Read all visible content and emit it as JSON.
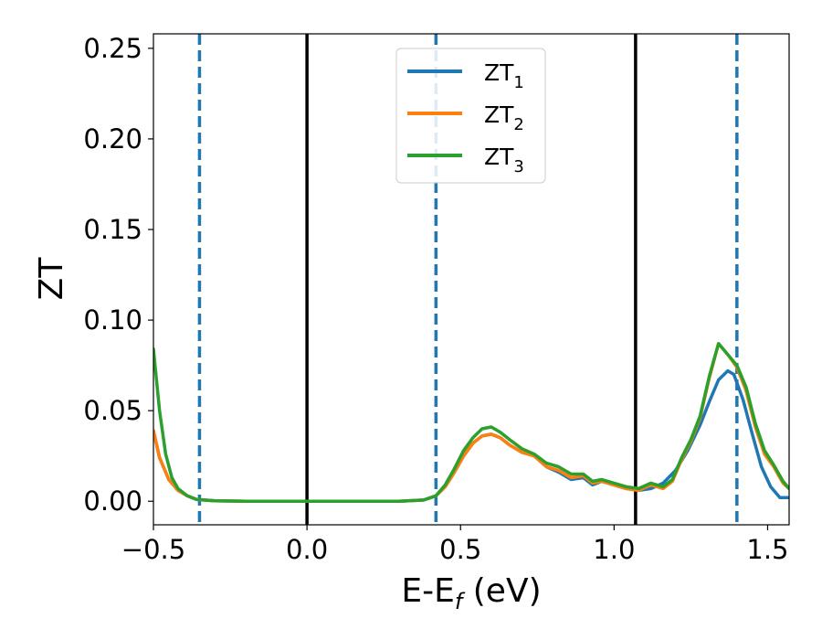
{
  "chart_data": {
    "type": "line",
    "xlabel": "E-E",
    "xlabel_sub": "f",
    "xlabel_unit": " (eV)",
    "ylabel": "ZT",
    "xlim": [
      -0.5,
      1.57
    ],
    "ylim": [
      -0.013,
      0.258
    ],
    "xticks": [
      -0.5,
      0.0,
      0.5,
      1.0,
      1.5
    ],
    "xtick_labels": [
      "−0.5",
      "0.0",
      "0.5",
      "1.0",
      "1.5"
    ],
    "yticks": [
      0.0,
      0.05,
      0.1,
      0.15,
      0.2,
      0.25
    ],
    "ytick_labels": [
      "0.00",
      "0.05",
      "0.10",
      "0.15",
      "0.20",
      "0.25"
    ],
    "grid": false,
    "legend_position": "top-center",
    "vertical_lines": [
      {
        "x": -0.35,
        "style": "dashed",
        "color": "#1f77b4"
      },
      {
        "x": 0.0,
        "style": "solid",
        "color": "#000000"
      },
      {
        "x": 0.42,
        "style": "dashed",
        "color": "#1f77b4"
      },
      {
        "x": 1.07,
        "style": "solid",
        "color": "#000000"
      },
      {
        "x": 1.4,
        "style": "dashed",
        "color": "#1f77b4"
      }
    ],
    "series": [
      {
        "name": "ZT",
        "sub": "1",
        "color": "#1f77b4",
        "points": [
          [
            -0.5,
            0.039
          ],
          [
            -0.48,
            0.024
          ],
          [
            -0.45,
            0.012
          ],
          [
            -0.42,
            0.006
          ],
          [
            -0.39,
            0.003
          ],
          [
            -0.36,
            0.001
          ],
          [
            -0.3,
            0.0002
          ],
          [
            -0.2,
            0
          ],
          [
            0.0,
            0
          ],
          [
            0.3,
            0
          ],
          [
            0.38,
            0.0007
          ],
          [
            0.42,
            0.003
          ],
          [
            0.45,
            0.008
          ],
          [
            0.48,
            0.016
          ],
          [
            0.51,
            0.025
          ],
          [
            0.54,
            0.032
          ],
          [
            0.57,
            0.036
          ],
          [
            0.6,
            0.037
          ],
          [
            0.63,
            0.035
          ],
          [
            0.66,
            0.031
          ],
          [
            0.7,
            0.027
          ],
          [
            0.74,
            0.025
          ],
          [
            0.78,
            0.019
          ],
          [
            0.82,
            0.016
          ],
          [
            0.86,
            0.012
          ],
          [
            0.9,
            0.013
          ],
          [
            0.93,
            0.009
          ],
          [
            0.96,
            0.011
          ],
          [
            1.0,
            0.009
          ],
          [
            1.04,
            0.007
          ],
          [
            1.08,
            0.006
          ],
          [
            1.12,
            0.007
          ],
          [
            1.16,
            0.01
          ],
          [
            1.2,
            0.017
          ],
          [
            1.24,
            0.028
          ],
          [
            1.28,
            0.042
          ],
          [
            1.31,
            0.055
          ],
          [
            1.34,
            0.067
          ],
          [
            1.37,
            0.072
          ],
          [
            1.39,
            0.07
          ],
          [
            1.42,
            0.056
          ],
          [
            1.45,
            0.037
          ],
          [
            1.48,
            0.019
          ],
          [
            1.51,
            0.008
          ],
          [
            1.54,
            0.002
          ],
          [
            1.57,
            0.002
          ]
        ]
      },
      {
        "name": "ZT",
        "sub": "2",
        "color": "#ff7f0e",
        "points": [
          [
            -0.5,
            0.039
          ],
          [
            -0.48,
            0.024
          ],
          [
            -0.45,
            0.012
          ],
          [
            -0.42,
            0.006
          ],
          [
            -0.39,
            0.003
          ],
          [
            -0.36,
            0.001
          ],
          [
            -0.3,
            0.0002
          ],
          [
            -0.2,
            0
          ],
          [
            0.0,
            0
          ],
          [
            0.3,
            0
          ],
          [
            0.38,
            0.0007
          ],
          [
            0.42,
            0.003
          ],
          [
            0.45,
            0.008
          ],
          [
            0.48,
            0.016
          ],
          [
            0.51,
            0.025
          ],
          [
            0.54,
            0.032
          ],
          [
            0.57,
            0.036
          ],
          [
            0.6,
            0.037
          ],
          [
            0.63,
            0.035
          ],
          [
            0.66,
            0.031
          ],
          [
            0.7,
            0.027
          ],
          [
            0.74,
            0.025
          ],
          [
            0.78,
            0.019
          ],
          [
            0.82,
            0.017
          ],
          [
            0.86,
            0.013
          ],
          [
            0.9,
            0.014
          ],
          [
            0.93,
            0.01
          ],
          [
            0.96,
            0.011
          ],
          [
            1.0,
            0.009
          ],
          [
            1.04,
            0.007
          ],
          [
            1.08,
            0.006
          ],
          [
            1.12,
            0.009
          ],
          [
            1.16,
            0.007
          ],
          [
            1.19,
            0.011
          ],
          [
            1.22,
            0.023
          ],
          [
            1.25,
            0.033
          ],
          [
            1.28,
            0.046
          ],
          [
            1.31,
            0.068
          ],
          [
            1.34,
            0.087
          ],
          [
            1.37,
            0.081
          ],
          [
            1.4,
            0.074
          ],
          [
            1.43,
            0.061
          ],
          [
            1.46,
            0.041
          ],
          [
            1.49,
            0.026
          ],
          [
            1.52,
            0.019
          ],
          [
            1.55,
            0.01
          ],
          [
            1.57,
            0.007
          ]
        ]
      },
      {
        "name": "ZT",
        "sub": "3",
        "color": "#2ca02c",
        "points": [
          [
            -0.5,
            0.084
          ],
          [
            -0.48,
            0.05
          ],
          [
            -0.46,
            0.026
          ],
          [
            -0.44,
            0.013
          ],
          [
            -0.42,
            0.007
          ],
          [
            -0.39,
            0.003
          ],
          [
            -0.36,
            0.001
          ],
          [
            -0.3,
            0.0002
          ],
          [
            -0.2,
            0
          ],
          [
            0.0,
            0
          ],
          [
            0.3,
            0
          ],
          [
            0.38,
            0.0007
          ],
          [
            0.42,
            0.003
          ],
          [
            0.45,
            0.009
          ],
          [
            0.48,
            0.018
          ],
          [
            0.51,
            0.028
          ],
          [
            0.54,
            0.035
          ],
          [
            0.57,
            0.04
          ],
          [
            0.6,
            0.041
          ],
          [
            0.63,
            0.038
          ],
          [
            0.66,
            0.034
          ],
          [
            0.7,
            0.029
          ],
          [
            0.74,
            0.026
          ],
          [
            0.78,
            0.021
          ],
          [
            0.82,
            0.019
          ],
          [
            0.86,
            0.015
          ],
          [
            0.9,
            0.015
          ],
          [
            0.93,
            0.011
          ],
          [
            0.96,
            0.012
          ],
          [
            1.0,
            0.01
          ],
          [
            1.04,
            0.008
          ],
          [
            1.08,
            0.007
          ],
          [
            1.12,
            0.01
          ],
          [
            1.16,
            0.008
          ],
          [
            1.19,
            0.012
          ],
          [
            1.22,
            0.024
          ],
          [
            1.25,
            0.034
          ],
          [
            1.28,
            0.047
          ],
          [
            1.31,
            0.069
          ],
          [
            1.34,
            0.087
          ],
          [
            1.37,
            0.081
          ],
          [
            1.4,
            0.075
          ],
          [
            1.43,
            0.063
          ],
          [
            1.46,
            0.043
          ],
          [
            1.49,
            0.028
          ],
          [
            1.52,
            0.02
          ],
          [
            1.55,
            0.011
          ],
          [
            1.57,
            0.007
          ]
        ]
      }
    ]
  }
}
